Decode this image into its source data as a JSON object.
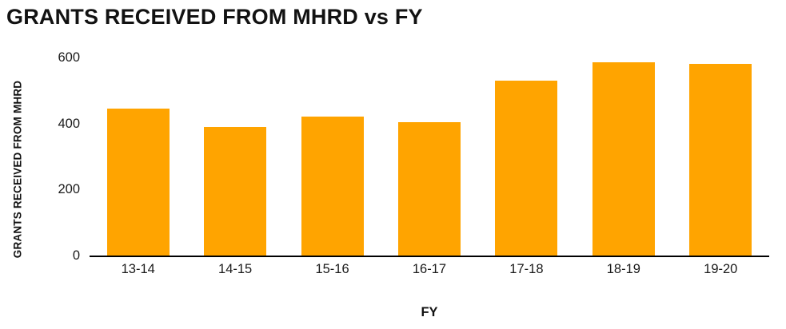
{
  "chart_data": {
    "type": "bar",
    "title": "GRANTS RECEIVED FROM MHRD vs FY",
    "xlabel": "FY",
    "ylabel": "GRANTS RECEIVED FROM MHRD",
    "categories": [
      "13-14",
      "14-15",
      "15-16",
      "16-17",
      "17-18",
      "18-19",
      "19-20"
    ],
    "values": [
      445,
      390,
      420,
      405,
      530,
      585,
      580
    ],
    "ylim": [
      0,
      600
    ],
    "yticks": [
      0,
      200,
      400,
      600
    ],
    "grid": false,
    "legend": null,
    "bar_color": "#FFA400",
    "axis_color": "#000000",
    "text_color": "#1a1a1a"
  }
}
